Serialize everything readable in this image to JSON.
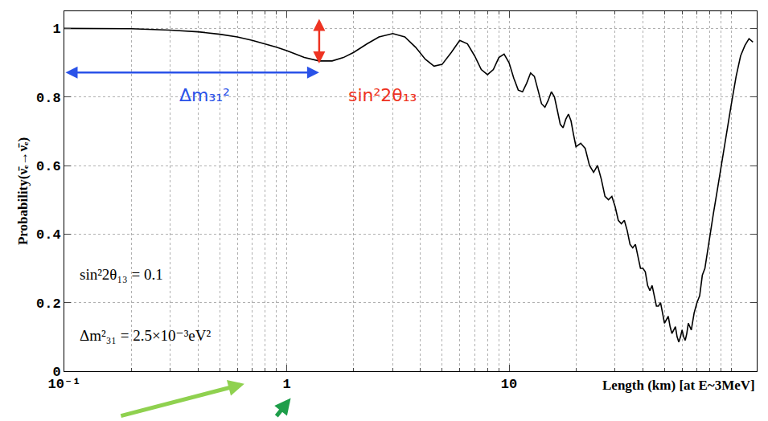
{
  "chart_data": {
    "type": "line",
    "x_label": "Length (km) [at E~3MeV]",
    "y_label": "Probability(ν̄ₑ→ν̄ₑ)",
    "log": "x",
    "grid": true,
    "color": "#000000",
    "xlim": [
      0.1,
      130
    ],
    "ylim": [
      0,
      1.05
    ],
    "xticks": [
      {
        "value": 0.1,
        "label": "10⁻¹"
      },
      1,
      10
    ],
    "yticks": [
      0,
      0.2,
      0.4,
      0.6,
      0.8,
      1
    ],
    "x": [
      0.1,
      0.2,
      0.3,
      0.4,
      0.5,
      0.6,
      0.7,
      0.8,
      0.9,
      1.0,
      1.2,
      1.4,
      1.6,
      1.8,
      2.0,
      2.3,
      2.6,
      3.0,
      3.4,
      3.8,
      4.2,
      4.6,
      5.0,
      5.5,
      6.0,
      6.5,
      7.0,
      7.5,
      8.0,
      8.5,
      9.0,
      9.5,
      10,
      10.5,
      11,
      11.5,
      12,
      12.5,
      13,
      13.5,
      14,
      14.5,
      15,
      15.5,
      16,
      16.5,
      17,
      17.5,
      18,
      18.5,
      19,
      19.5,
      20,
      21,
      22,
      23,
      24,
      25,
      26,
      27,
      28,
      29,
      30,
      31,
      32,
      33,
      34,
      35,
      36,
      37,
      38,
      39,
      40,
      41,
      42,
      43,
      44,
      45,
      46,
      47,
      48,
      49,
      50,
      51,
      52,
      53,
      54,
      55,
      56,
      57,
      58,
      59,
      60,
      61,
      62,
      63,
      64,
      65,
      66,
      68,
      70,
      72,
      74,
      76,
      78,
      80,
      83,
      86,
      90,
      95,
      100,
      105,
      110,
      115,
      120,
      125
    ],
    "values": [
      1.0,
      0.999,
      0.995,
      0.99,
      0.983,
      0.975,
      0.965,
      0.955,
      0.945,
      0.935,
      0.915,
      0.905,
      0.905,
      0.915,
      0.93,
      0.955,
      0.975,
      0.985,
      0.975,
      0.945,
      0.91,
      0.89,
      0.895,
      0.93,
      0.965,
      0.955,
      0.92,
      0.88,
      0.865,
      0.88,
      0.915,
      0.925,
      0.9,
      0.855,
      0.82,
      0.815,
      0.84,
      0.87,
      0.86,
      0.82,
      0.78,
      0.77,
      0.79,
      0.815,
      0.8,
      0.76,
      0.72,
      0.71,
      0.735,
      0.75,
      0.73,
      0.69,
      0.655,
      0.665,
      0.65,
      0.6,
      0.58,
      0.6,
      0.56,
      0.51,
      0.5,
      0.51,
      0.48,
      0.44,
      0.43,
      0.44,
      0.41,
      0.37,
      0.36,
      0.37,
      0.33,
      0.3,
      0.3,
      0.29,
      0.25,
      0.235,
      0.25,
      0.22,
      0.19,
      0.19,
      0.2,
      0.17,
      0.14,
      0.15,
      0.16,
      0.13,
      0.11,
      0.12,
      0.13,
      0.1,
      0.085,
      0.1,
      0.12,
      0.1,
      0.09,
      0.11,
      0.14,
      0.13,
      0.12,
      0.17,
      0.2,
      0.22,
      0.28,
      0.3,
      0.35,
      0.4,
      0.46,
      0.52,
      0.6,
      0.7,
      0.78,
      0.86,
      0.92,
      0.95,
      0.97,
      0.96
    ],
    "annotations": [
      {
        "text": "Δm₃₁²",
        "color": "#2a52e8"
      },
      {
        "text": "sin²2θ₁₃",
        "color": "#ee3322"
      },
      {
        "text": "sin²2θ₁₃ = 0.1",
        "color": "#000000"
      },
      {
        "text": "Δm²₃₁ = 2.5×10⁻³eV²",
        "color": "#000000"
      }
    ]
  }
}
